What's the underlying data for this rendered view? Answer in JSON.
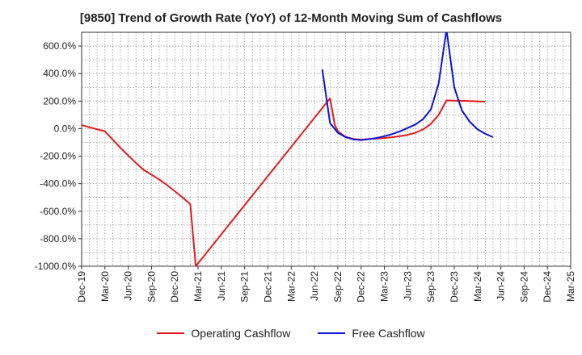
{
  "chart_data": {
    "type": "line",
    "title": "[9850]  Trend of Growth Rate (YoY) of 12-Month Moving Sum of Cashflows",
    "xlabel": "",
    "ylabel": "",
    "ylim": [
      -1000,
      700
    ],
    "yticks": [
      -1000,
      -800,
      -600,
      -400,
      -200,
      0,
      200,
      400,
      600
    ],
    "ytick_labels": [
      "-1000.0%",
      "-800.0%",
      "-600.0%",
      "-400.0%",
      "-200.0%",
      "0.0%",
      "200.0%",
      "400.0%",
      "600.0%"
    ],
    "x_categories": [
      "Dec-19",
      "Mar-20",
      "Jun-20",
      "Sep-20",
      "Dec-20",
      "Mar-21",
      "Jun-21",
      "Sep-21",
      "Dec-21",
      "Mar-22",
      "Jun-22",
      "Sep-22",
      "Dec-22",
      "Mar-23",
      "Jun-23",
      "Sep-23",
      "Dec-23",
      "Mar-24",
      "Jun-24",
      "Sep-24",
      "Dec-24",
      "Mar-25"
    ],
    "grid": true,
    "legend_position": "bottom",
    "series": [
      {
        "name": "Operating Cashflow",
        "color": "#e31a1c",
        "points": [
          [
            0,
            25
          ],
          [
            1,
            10
          ],
          [
            2,
            -5
          ],
          [
            3,
            -20
          ],
          [
            4,
            -80
          ],
          [
            5,
            -140
          ],
          [
            6,
            -195
          ],
          [
            7,
            -250
          ],
          [
            8,
            -300
          ],
          [
            9,
            -335
          ],
          [
            10,
            -370
          ],
          [
            11,
            -410
          ],
          [
            12,
            -455
          ],
          [
            13,
            -500
          ],
          [
            14,
            -550
          ],
          [
            14.7,
            -1000
          ],
          [
            32,
            220
          ],
          [
            32.6,
            30
          ],
          [
            33,
            -20
          ],
          [
            34,
            -60
          ],
          [
            35,
            -75
          ],
          [
            36,
            -80
          ],
          [
            37,
            -75
          ],
          [
            38,
            -72
          ],
          [
            39,
            -68
          ],
          [
            40,
            -63
          ],
          [
            41,
            -55
          ],
          [
            42,
            -45
          ],
          [
            43,
            -30
          ],
          [
            44,
            -5
          ],
          [
            45,
            35
          ],
          [
            46,
            100
          ],
          [
            47,
            205
          ],
          [
            48,
            203
          ],
          [
            49,
            202
          ],
          [
            50,
            200
          ],
          [
            51,
            198
          ],
          [
            52,
            196
          ]
        ]
      },
      {
        "name": "Free Cashflow",
        "color": "#0a14d8",
        "points": [
          [
            31,
            430
          ],
          [
            32,
            40
          ],
          [
            33,
            -30
          ],
          [
            34,
            -62
          ],
          [
            35,
            -78
          ],
          [
            36,
            -83
          ],
          [
            37,
            -77
          ],
          [
            38,
            -68
          ],
          [
            39,
            -55
          ],
          [
            40,
            -40
          ],
          [
            41,
            -20
          ],
          [
            42,
            5
          ],
          [
            43,
            30
          ],
          [
            44,
            70
          ],
          [
            45,
            140
          ],
          [
            46,
            330
          ],
          [
            47,
            720
          ],
          [
            48,
            300
          ],
          [
            49,
            130
          ],
          [
            50,
            50
          ],
          [
            51,
            -5
          ],
          [
            52,
            -38
          ],
          [
            53,
            -62
          ]
        ]
      }
    ]
  }
}
